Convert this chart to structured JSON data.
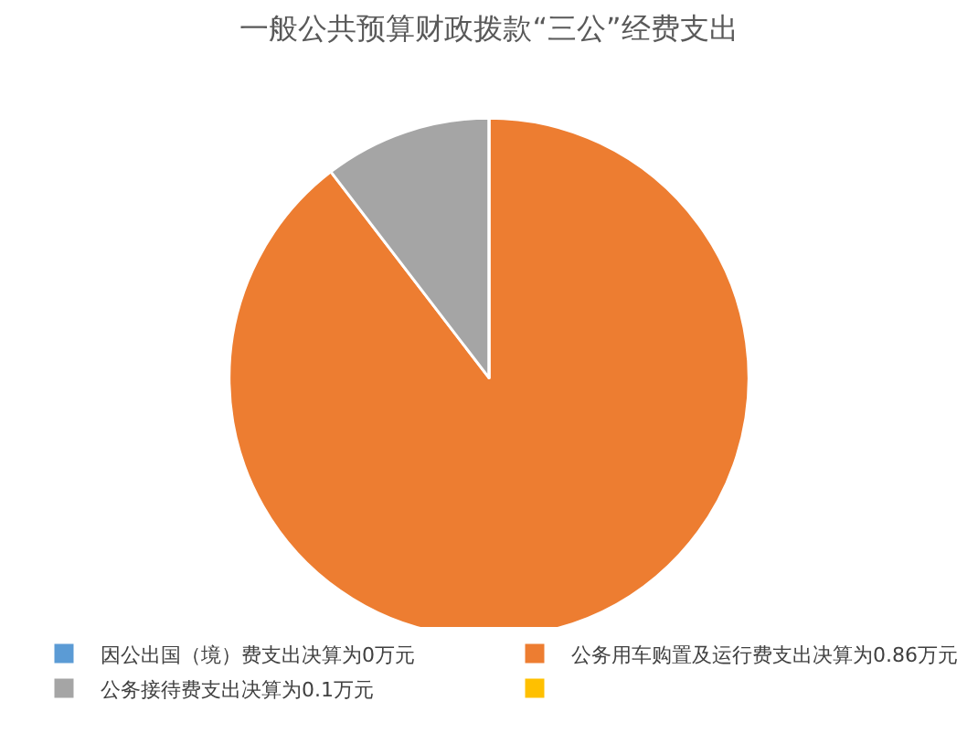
{
  "chart_data": {
    "type": "pie",
    "title": "一般公共预算财政拨款“三公”经费支出",
    "categories": [
      "因公出国（境）费支出决算为0万元",
      "公务用车购置及运行费支出决算为0.86万元",
      "公务接待费支出决算为0.1万元",
      null
    ],
    "values": [
      0,
      0.86,
      0.1,
      0
    ],
    "colors": [
      "#5b9bd5",
      "#ed7d31",
      "#a5a5a5",
      "#ffc000"
    ],
    "legend": "bottom"
  }
}
